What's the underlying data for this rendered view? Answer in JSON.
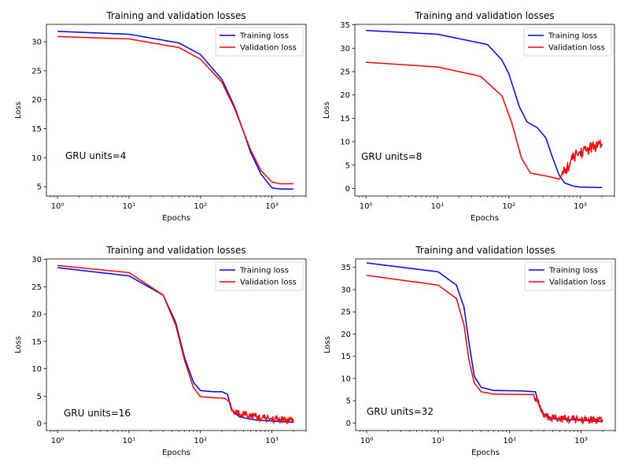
{
  "chart_data": [
    {
      "type": "line",
      "title": "Training and validation losses",
      "xlabel": "Epochs",
      "ylabel": "Loss",
      "xscale": "log",
      "xlim": [
        0.7,
        3000
      ],
      "ylim": [
        3.4,
        33.0
      ],
      "yticks": [
        "5",
        "10",
        "15",
        "20",
        "25",
        "30"
      ],
      "xticks": [
        "10⁰",
        "10¹",
        "10²",
        "10³"
      ],
      "legend_position": "top-right",
      "annotation": "GRU units=4",
      "series": [
        {
          "name": "Training loss",
          "color": "#0000ff",
          "points": [
            [
              1,
              31.8
            ],
            [
              10,
              31.3
            ],
            [
              50,
              29.8
            ],
            [
              100,
              27.8
            ],
            [
              200,
              23.5
            ],
            [
              300,
              18.8
            ],
            [
              400,
              14.5
            ],
            [
              500,
              11.0
            ],
            [
              700,
              7.2
            ],
            [
              1000,
              4.8
            ],
            [
              1300,
              4.6
            ],
            [
              2000,
              4.6
            ]
          ]
        },
        {
          "name": "Validation loss",
          "color": "#ff0000",
          "points": [
            [
              1,
              30.9
            ],
            [
              10,
              30.5
            ],
            [
              50,
              29.0
            ],
            [
              100,
              27.0
            ],
            [
              200,
              23.0
            ],
            [
              300,
              18.5
            ],
            [
              400,
              14.5
            ],
            [
              500,
              11.4
            ],
            [
              700,
              7.8
            ],
            [
              1000,
              5.8
            ],
            [
              1300,
              5.5
            ],
            [
              2000,
              5.5
            ]
          ]
        }
      ]
    },
    {
      "type": "line",
      "title": "Training and validation losses",
      "xlabel": "Epochs",
      "ylabel": "Loss",
      "xscale": "log",
      "xlim": [
        0.7,
        3000
      ],
      "ylim": [
        -1.6,
        35.1
      ],
      "yticks": [
        "0",
        "5",
        "10",
        "15",
        "20",
        "25",
        "30",
        "35"
      ],
      "xticks": [
        "10⁰",
        "10¹",
        "10²",
        "10³"
      ],
      "legend_position": "top-right",
      "annotation": "GRU units=8",
      "series": [
        {
          "name": "Training loss",
          "color": "#0000ff",
          "points": [
            [
              1,
              33.8
            ],
            [
              10,
              33.0
            ],
            [
              50,
              30.8
            ],
            [
              80,
              27.5
            ],
            [
              100,
              24.5
            ],
            [
              140,
              17.5
            ],
            [
              180,
              14.2
            ],
            [
              250,
              13.0
            ],
            [
              330,
              10.8
            ],
            [
              400,
              7.0
            ],
            [
              500,
              3.0
            ],
            [
              600,
              1.2
            ],
            [
              800,
              0.5
            ],
            [
              1000,
              0.3
            ],
            [
              2000,
              0.2
            ]
          ]
        },
        {
          "name": "Validation loss",
          "color": "#ff0000",
          "points": [
            [
              1,
              27.0
            ],
            [
              10,
              26.0
            ],
            [
              40,
              24.0
            ],
            [
              80,
              19.8
            ],
            [
              110,
              14.0
            ],
            [
              150,
              6.5
            ],
            [
              200,
              3.3
            ],
            [
              300,
              2.8
            ],
            [
              400,
              2.4
            ],
            [
              500,
              2.0
            ],
            [
              600,
              3.5
            ],
            [
              700,
              5.2
            ],
            [
              850,
              7.2
            ],
            [
              1100,
              8.0
            ],
            [
              1500,
              8.8
            ],
            [
              2000,
              9.3
            ]
          ],
          "noise_from": 550,
          "noise_amplitude": 1.3
        }
      ]
    },
    {
      "type": "line",
      "title": "Training and validation losses",
      "xlabel": "Epochs",
      "ylabel": "Loss",
      "xscale": "log",
      "xlim": [
        0.7,
        3000
      ],
      "ylim": [
        -1.3,
        30.1
      ],
      "yticks": [
        "0",
        "5",
        "10",
        "15",
        "20",
        "25",
        "30"
      ],
      "xticks": [
        "10⁰",
        "10¹",
        "10²",
        "10³"
      ],
      "legend_position": "top-right",
      "annotation": "GRU units=16",
      "series": [
        {
          "name": "Training loss",
          "color": "#0000ff",
          "points": [
            [
              1,
              28.5
            ],
            [
              10,
              27.0
            ],
            [
              30,
              23.5
            ],
            [
              45,
              18.5
            ],
            [
              60,
              12.0
            ],
            [
              80,
              7.5
            ],
            [
              100,
              6.0
            ],
            [
              150,
              5.8
            ],
            [
              200,
              5.8
            ],
            [
              240,
              5.3
            ],
            [
              270,
              2.5
            ],
            [
              350,
              1.2
            ],
            [
              600,
              0.6
            ],
            [
              2000,
              0.2
            ]
          ]
        },
        {
          "name": "Validation loss",
          "color": "#ff0000",
          "points": [
            [
              1,
              28.9
            ],
            [
              10,
              27.6
            ],
            [
              30,
              23.5
            ],
            [
              45,
              18.0
            ],
            [
              60,
              11.5
            ],
            [
              80,
              6.5
            ],
            [
              100,
              4.9
            ],
            [
              150,
              4.7
            ],
            [
              220,
              4.6
            ],
            [
              260,
              3.8
            ],
            [
              280,
              2.0
            ],
            [
              400,
              1.8
            ],
            [
              700,
              1.0
            ],
            [
              2000,
              0.4
            ]
          ],
          "noise_from": 280,
          "noise_amplitude": 0.7
        }
      ]
    },
    {
      "type": "line",
      "title": "Training and validation losses",
      "xlabel": "Epochs",
      "ylabel": "Loss",
      "xscale": "log",
      "xlim": [
        0.7,
        3000
      ],
      "ylim": [
        -1.7,
        36.9
      ],
      "yticks": [
        "0",
        "5",
        "10",
        "15",
        "20",
        "25",
        "30",
        "35"
      ],
      "xticks": [
        "10⁰",
        "10¹",
        "10²",
        "10³"
      ],
      "legend_position": "top-right",
      "annotation": "GRU units=32",
      "series": [
        {
          "name": "Training loss",
          "color": "#0000ff",
          "points": [
            [
              1,
              36.0
            ],
            [
              10,
              34.0
            ],
            [
              18,
              31.0
            ],
            [
              23,
              26.0
            ],
            [
              27,
              18.0
            ],
            [
              32,
              10.5
            ],
            [
              40,
              8.0
            ],
            [
              60,
              7.3
            ],
            [
              150,
              7.2
            ],
            [
              230,
              7.0
            ],
            [
              250,
              4.5
            ],
            [
              300,
              2.0
            ],
            [
              400,
              1.0
            ],
            [
              2000,
              0.3
            ]
          ]
        },
        {
          "name": "Validation loss",
          "color": "#ff0000",
          "points": [
            [
              1,
              33.2
            ],
            [
              10,
              31.0
            ],
            [
              18,
              28.0
            ],
            [
              23,
              22.0
            ],
            [
              27,
              14.0
            ],
            [
              32,
              9.0
            ],
            [
              40,
              7.0
            ],
            [
              60,
              6.5
            ],
            [
              150,
              6.4
            ],
            [
              220,
              6.4
            ],
            [
              250,
              4.5
            ],
            [
              300,
              1.6
            ],
            [
              500,
              1.0
            ],
            [
              2000,
              0.5
            ]
          ],
          "noise_from": 220,
          "noise_amplitude": 0.9
        }
      ]
    }
  ]
}
